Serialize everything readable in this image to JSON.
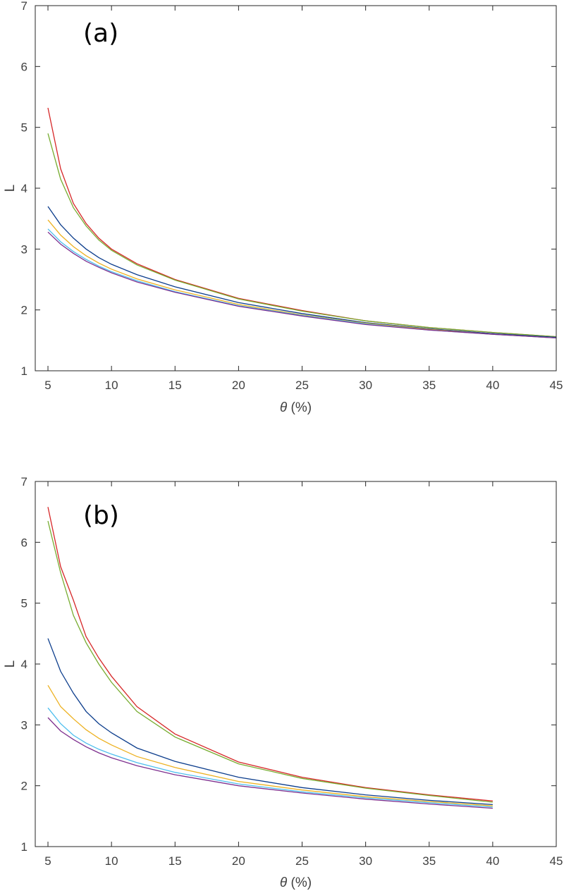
{
  "chart_data": [
    {
      "type": "line",
      "panel_label": "(a)",
      "xlabel_symbol": "θ",
      "xlabel_unit": " (%)",
      "ylabel": "L",
      "xlim": [
        4,
        45
      ],
      "ylim": [
        1,
        7
      ],
      "xticks": [
        5,
        10,
        15,
        20,
        25,
        30,
        35,
        40,
        45
      ],
      "yticks": [
        1,
        2,
        3,
        4,
        5,
        6,
        7
      ],
      "grid": false,
      "x": [
        5,
        6,
        7,
        8,
        9,
        10,
        12,
        15,
        20,
        25,
        30,
        35,
        40,
        45
      ],
      "series": [
        {
          "color": "#d62728",
          "values": [
            5.32,
            4.32,
            3.75,
            3.42,
            3.18,
            3.0,
            2.76,
            2.5,
            2.19,
            1.99,
            1.82,
            1.71,
            1.63,
            1.56
          ]
        },
        {
          "color": "#77ac30",
          "values": [
            4.9,
            4.15,
            3.68,
            3.38,
            3.15,
            2.98,
            2.74,
            2.49,
            2.18,
            1.98,
            1.82,
            1.71,
            1.63,
            1.56
          ]
        },
        {
          "color": "#0c3d8c",
          "values": [
            3.7,
            3.4,
            3.18,
            3.0,
            2.86,
            2.75,
            2.58,
            2.38,
            2.12,
            1.94,
            1.79,
            1.69,
            1.61,
            1.55
          ]
        },
        {
          "color": "#edb120",
          "values": [
            3.48,
            3.23,
            3.04,
            2.89,
            2.77,
            2.67,
            2.51,
            2.33,
            2.09,
            1.92,
            1.78,
            1.68,
            1.6,
            1.54
          ]
        },
        {
          "color": "#4dbeee",
          "values": [
            3.33,
            3.12,
            2.96,
            2.83,
            2.72,
            2.63,
            2.48,
            2.3,
            2.07,
            1.91,
            1.77,
            1.67,
            1.6,
            1.54
          ]
        },
        {
          "color": "#7e2f8e",
          "values": [
            3.28,
            3.08,
            2.93,
            2.8,
            2.7,
            2.61,
            2.46,
            2.29,
            2.06,
            1.9,
            1.76,
            1.67,
            1.6,
            1.54
          ]
        }
      ]
    },
    {
      "type": "line",
      "panel_label": "(b)",
      "xlabel_symbol": "θ",
      "xlabel_unit": " (%)",
      "ylabel": "L",
      "xlim": [
        4,
        45
      ],
      "ylim": [
        1,
        7
      ],
      "xticks": [
        5,
        10,
        15,
        20,
        25,
        30,
        35,
        40,
        45
      ],
      "yticks": [
        1,
        2,
        3,
        4,
        5,
        6,
        7
      ],
      "grid": false,
      "x": [
        5,
        6,
        7,
        8,
        9,
        10,
        12,
        15,
        20,
        25,
        30,
        35,
        40
      ],
      "series": [
        {
          "color": "#d62728",
          "values": [
            6.58,
            5.6,
            5.05,
            4.45,
            4.1,
            3.8,
            3.3,
            2.85,
            2.39,
            2.14,
            1.97,
            1.85,
            1.75
          ]
        },
        {
          "color": "#77ac30",
          "values": [
            6.35,
            5.5,
            4.8,
            4.35,
            4.0,
            3.7,
            3.22,
            2.8,
            2.36,
            2.12,
            1.96,
            1.84,
            1.73
          ]
        },
        {
          "color": "#0c3d8c",
          "values": [
            4.42,
            3.88,
            3.52,
            3.22,
            3.02,
            2.87,
            2.62,
            2.4,
            2.14,
            1.97,
            1.85,
            1.76,
            1.69
          ]
        },
        {
          "color": "#edb120",
          "values": [
            3.65,
            3.3,
            3.1,
            2.92,
            2.78,
            2.67,
            2.48,
            2.3,
            2.07,
            1.93,
            1.82,
            1.74,
            1.67
          ]
        },
        {
          "color": "#4dbeee",
          "values": [
            3.28,
            3.02,
            2.83,
            2.7,
            2.6,
            2.52,
            2.38,
            2.22,
            2.03,
            1.9,
            1.8,
            1.72,
            1.65
          ]
        },
        {
          "color": "#7e2f8e",
          "values": [
            3.12,
            2.9,
            2.76,
            2.64,
            2.54,
            2.46,
            2.33,
            2.18,
            2.0,
            1.88,
            1.78,
            1.7,
            1.63
          ]
        }
      ]
    }
  ]
}
